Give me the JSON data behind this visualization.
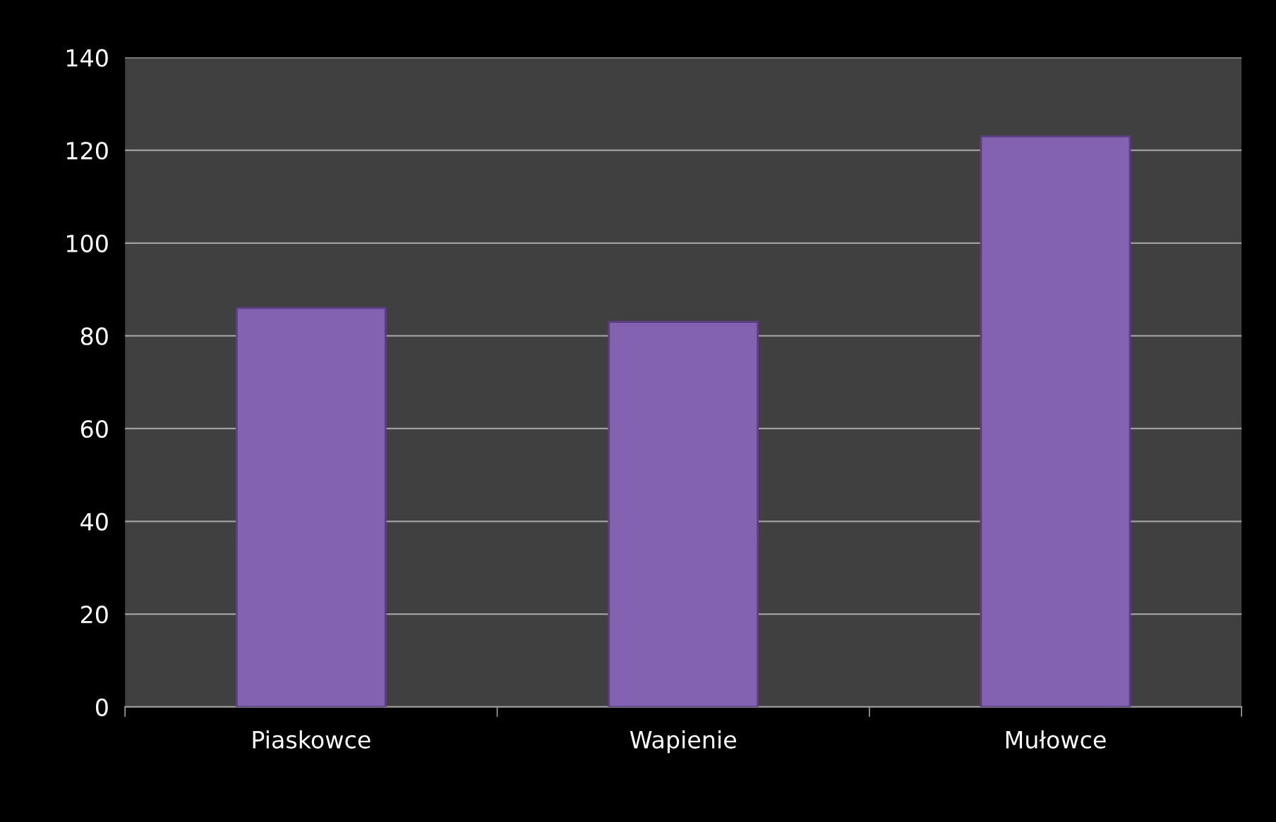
{
  "chart_data": {
    "type": "bar",
    "categories": [
      "Piaskowce",
      "Wapienie",
      "Mułowce"
    ],
    "values": [
      86,
      83,
      123
    ],
    "color": "#8462b2",
    "ylim": [
      0,
      140
    ],
    "yticks": [
      0,
      20,
      40,
      60,
      80,
      100,
      120,
      140
    ],
    "grid": "y"
  }
}
